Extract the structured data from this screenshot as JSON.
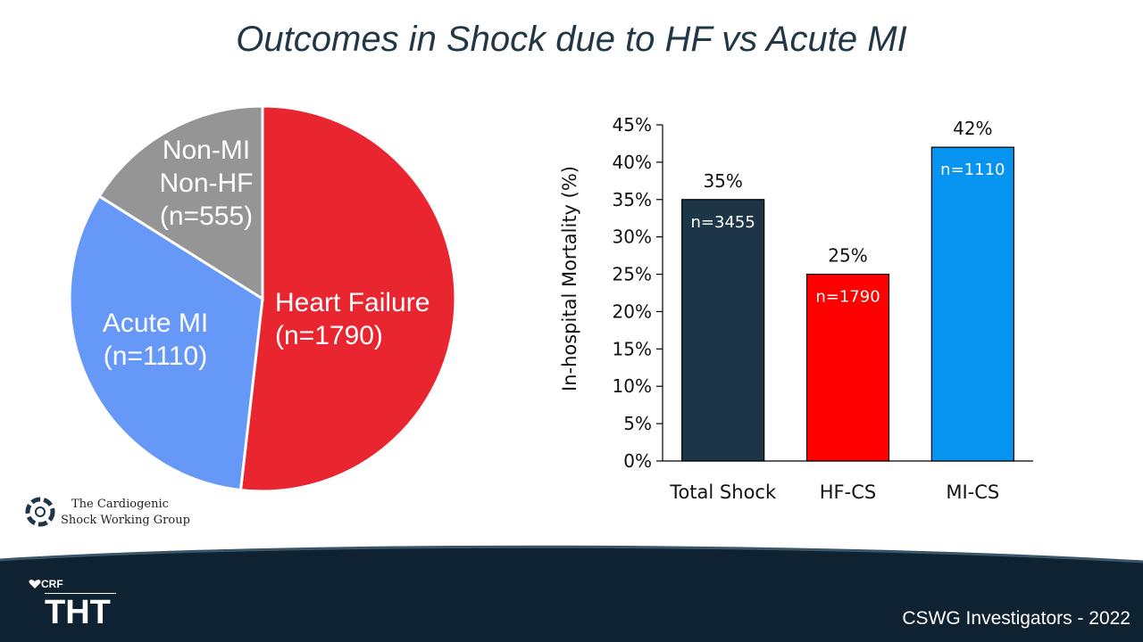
{
  "slide": {
    "title": "Outcomes in Shock due to HF vs Acute MI",
    "logo_text_line1": "The Cardiogenic",
    "logo_text_line2": "Shock Working Group",
    "footer_brand_small": "CRF",
    "footer_brand_large": "THT",
    "credit": "CSWG Investigators - 2022"
  },
  "colors": {
    "title": "#213746",
    "heart_failure": "#E9252F",
    "acute_mi": "#6699F7",
    "non_mi_non_hf": "#959595",
    "total_shock": "#1C3647",
    "hf_cs": "#FF0000",
    "mi_cs": "#0793F0",
    "footer": "#0E2231"
  },
  "chart_data": [
    {
      "type": "pie",
      "slices": [
        {
          "label_lines": [
            "Heart Failure",
            "(n=1790)"
          ],
          "value": 1790,
          "color": "#E9252F"
        },
        {
          "label_lines": [
            "Acute MI",
            "(n=1110)"
          ],
          "value": 1110,
          "color": "#6699F7"
        },
        {
          "label_lines": [
            "Non-MI",
            "Non-HF",
            "(n=555)"
          ],
          "value": 555,
          "color": "#959595"
        }
      ]
    },
    {
      "type": "bar",
      "ylabel": "In-hospital Mortality (%)",
      "ylim": [
        0,
        45
      ],
      "yticks": [
        "0%",
        "5%",
        "10%",
        "15%",
        "20%",
        "25%",
        "30%",
        "35%",
        "40%",
        "45%"
      ],
      "ytick_values": [
        0,
        5,
        10,
        15,
        20,
        25,
        30,
        35,
        40,
        45
      ],
      "categories": [
        "Total Shock",
        "HF-CS",
        "MI-CS"
      ],
      "values": [
        35,
        25,
        42
      ],
      "value_labels": [
        "35%",
        "25%",
        "42%"
      ],
      "n_labels": [
        "n=3455",
        "n=1790",
        "n=1110"
      ],
      "colors": [
        "#1C3647",
        "#FF0000",
        "#0793F0"
      ],
      "grid": false
    }
  ]
}
